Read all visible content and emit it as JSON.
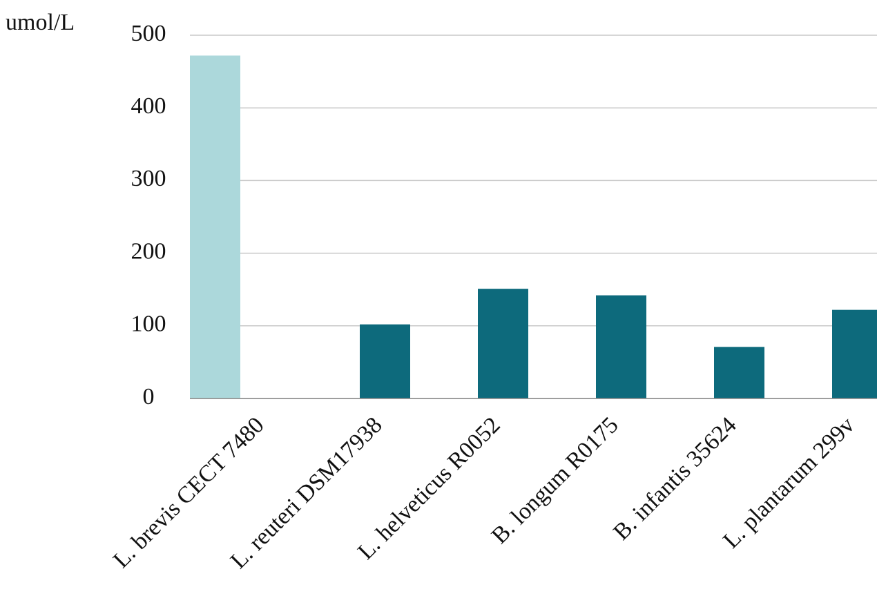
{
  "chart_data": {
    "type": "bar",
    "y_label": "umol/L",
    "categories": [
      "L. brevis CECT 7480",
      "L. reuteri DSM17938",
      "L. helveticus R0052",
      "B. longum R0175",
      "B. infantis 35624",
      "L. plantarum 299v"
    ],
    "values": [
      472,
      102,
      151,
      142,
      71,
      122
    ],
    "colors": [
      "#acd8db",
      "#0d6a7c",
      "#0d6a7c",
      "#0d6a7c",
      "#0d6a7c",
      "#0d6a7c"
    ],
    "ylim": [
      0,
      500
    ],
    "yticks": [
      0,
      100,
      200,
      300,
      400,
      500
    ],
    "grid": true
  }
}
